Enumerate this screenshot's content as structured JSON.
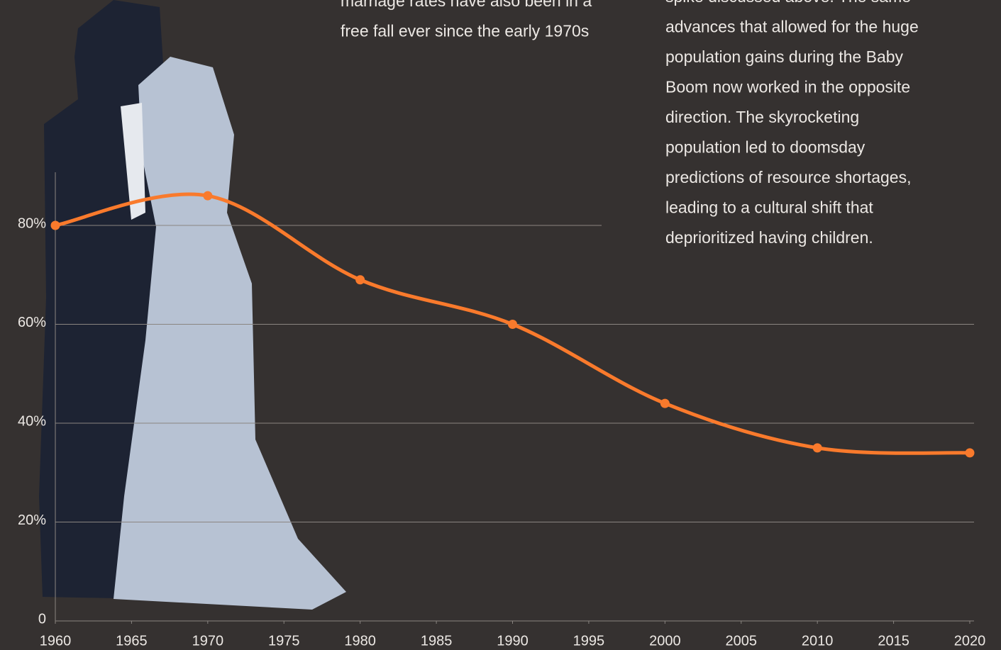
{
  "chart_data": {
    "type": "line",
    "x": [
      1960,
      1970,
      1980,
      1990,
      2000,
      2010,
      2020
    ],
    "values": [
      80,
      86,
      69,
      60,
      44,
      35,
      34
    ],
    "color": "#f97a2c",
    "xlim": [
      1960,
      2020
    ],
    "xticks": [
      1960,
      1965,
      1970,
      1975,
      1980,
      1985,
      1990,
      1995,
      2000,
      2005,
      2010,
      2015,
      2020
    ],
    "ylim": [
      0,
      80
    ],
    "yticks": [
      0,
      {
        "value": 20,
        "label": "20%"
      },
      {
        "value": 40,
        "label": "40%"
      },
      {
        "value": 60,
        "label": "60%"
      },
      {
        "value": 80,
        "label": "80%"
      }
    ],
    "grid": true,
    "annotations": [
      [
        "marriage rates have also been in a",
        "free fall ever since the early 1970s"
      ],
      [
        "spike discussed above. The same",
        "advances that allowed for the huge",
        "population gains during the Baby",
        "Boom now worked in the opposite",
        "direction. The skyrocketing",
        "population led to doomsday",
        "predictions of resource shortages,",
        "leading to a cultural shift that",
        "deprioritized having children."
      ]
    ]
  }
}
